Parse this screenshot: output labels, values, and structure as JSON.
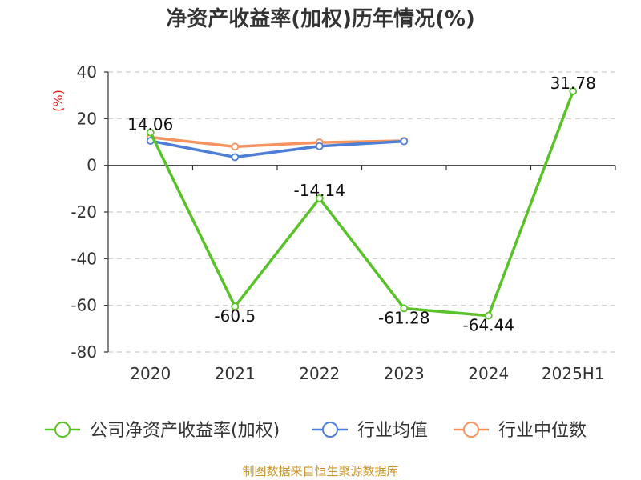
{
  "chart_data": {
    "type": "line",
    "title": "净资产收益率(加权)历年情况(%)",
    "ylabel": "(%)",
    "xlabel": "",
    "categories": [
      "2020",
      "2021",
      "2022",
      "2023",
      "2024",
      "2025H1"
    ],
    "ylim": [
      -80,
      40
    ],
    "yticks": [
      40,
      20,
      0,
      -20,
      -40,
      -60,
      -80
    ],
    "grid": true,
    "legend_position": "bottom",
    "series": [
      {
        "name": "公司净资产收益率(加权)",
        "color": "#5ac229",
        "values": [
          14.06,
          -60.5,
          -14.14,
          -61.28,
          -64.44,
          31.78
        ],
        "labels": [
          "14.06",
          "-60.5",
          "-14.14",
          "-61.28",
          "-64.44",
          "31.78"
        ]
      },
      {
        "name": "行业均值",
        "color": "#4d7fd6",
        "values": [
          10.5,
          3.5,
          8.2,
          10.3,
          null,
          null
        ]
      },
      {
        "name": "行业中位数",
        "color": "#f59461",
        "values": [
          12.0,
          8.0,
          9.8,
          10.5,
          null,
          null
        ]
      }
    ]
  },
  "source_text": "制图数据来自恒生聚源数据库"
}
